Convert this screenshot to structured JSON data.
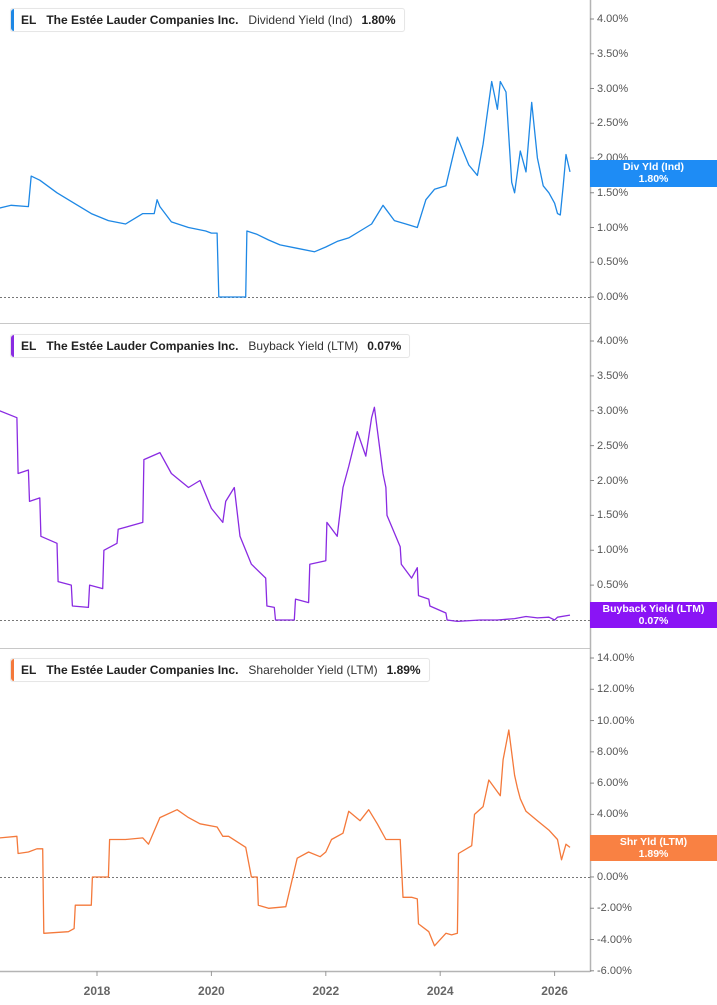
{
  "chart_data": [
    {
      "type": "line",
      "panel": 1,
      "title": "EL The Estée Lauder Companies Inc. Dividend Yield (Ind) 1.80%",
      "legend": {
        "ticker": "EL",
        "company": "The Estée Lauder Companies Inc.",
        "metric": "Dividend Yield (Ind)",
        "value": "1.80%"
      },
      "color": "#1e88e5",
      "flag": {
        "label": "Div Yld (Ind)",
        "value": "1.80%",
        "color": "#1e8cf5"
      },
      "y_ticks": [
        "4.00%",
        "3.50%",
        "3.00%",
        "2.50%",
        "2.00%",
        "1.50%",
        "1.00%",
        "0.50%",
        "0.00%"
      ],
      "ylim": [
        0,
        4.0
      ],
      "x": [
        2016.3,
        2016.5,
        2016.8,
        2016.85,
        2017.0,
        2017.3,
        2017.6,
        2017.9,
        2018.2,
        2018.5,
        2018.8,
        2019.0,
        2019.05,
        2019.1,
        2019.3,
        2019.6,
        2019.9,
        2020.0,
        2020.1,
        2020.13,
        2020.6,
        2020.62,
        2020.8,
        2021.0,
        2021.2,
        2021.5,
        2021.8,
        2022.0,
        2022.2,
        2022.4,
        2022.6,
        2022.8,
        2023.0,
        2023.2,
        2023.4,
        2023.6,
        2023.75,
        2023.9,
        2024.1,
        2024.3,
        2024.5,
        2024.65,
        2024.75,
        2024.85,
        2024.9,
        2025.0,
        2025.05,
        2025.15,
        2025.25,
        2025.3,
        2025.4,
        2025.5,
        2025.6,
        2025.7,
        2025.8,
        2025.9,
        2026.0,
        2026.05,
        2026.1,
        2026.15,
        2026.2,
        2026.27
      ],
      "values": [
        1.28,
        1.32,
        1.3,
        1.74,
        1.68,
        1.5,
        1.35,
        1.2,
        1.1,
        1.05,
        1.2,
        1.2,
        1.4,
        1.3,
        1.08,
        1.0,
        0.95,
        0.92,
        0.92,
        0.0,
        0.0,
        0.95,
        0.9,
        0.82,
        0.75,
        0.7,
        0.65,
        0.72,
        0.8,
        0.85,
        0.95,
        1.05,
        1.32,
        1.1,
        1.05,
        1.0,
        1.4,
        1.55,
        1.6,
        2.3,
        1.9,
        1.75,
        2.2,
        2.8,
        3.1,
        2.7,
        3.1,
        2.95,
        1.65,
        1.5,
        2.1,
        1.8,
        2.8,
        2.0,
        1.6,
        1.5,
        1.35,
        1.2,
        1.18,
        1.6,
        2.05,
        1.8
      ],
      "xlabel": "",
      "ylabel": ""
    },
    {
      "type": "line",
      "panel": 2,
      "title": "EL The Estée Lauder Companies Inc. Buyback Yield (LTM) 0.07%",
      "legend": {
        "ticker": "EL",
        "company": "The Estée Lauder Companies Inc.",
        "metric": "Buyback Yield (LTM)",
        "value": "0.07%"
      },
      "color": "#8a2be2",
      "flag": {
        "label": "Buyback Yield (LTM)",
        "value": "0.07%",
        "color": "#8a14f5"
      },
      "y_ticks": [
        "4.00%",
        "3.50%",
        "3.00%",
        "2.50%",
        "2.00%",
        "1.50%",
        "1.00%",
        "0.50%",
        "0.00%"
      ],
      "ylim": [
        0,
        4.0
      ],
      "x": [
        2016.3,
        2016.6,
        2016.62,
        2016.8,
        2016.82,
        2017.0,
        2017.02,
        2017.3,
        2017.32,
        2017.55,
        2017.57,
        2017.85,
        2017.87,
        2018.1,
        2018.12,
        2018.35,
        2018.37,
        2018.8,
        2018.82,
        2019.1,
        2019.3,
        2019.6,
        2019.8,
        2020.0,
        2020.2,
        2020.25,
        2020.4,
        2020.5,
        2020.7,
        2020.95,
        2020.97,
        2021.1,
        2021.12,
        2021.45,
        2021.47,
        2021.7,
        2021.72,
        2022.0,
        2022.02,
        2022.2,
        2022.3,
        2022.4,
        2022.55,
        2022.7,
        2022.8,
        2022.85,
        2023.0,
        2023.05,
        2023.07,
        2023.3,
        2023.32,
        2023.5,
        2023.6,
        2023.62,
        2023.8,
        2023.82,
        2024.1,
        2024.12,
        2024.3,
        2024.7,
        2025.0,
        2025.3,
        2025.5,
        2025.7,
        2025.9,
        2026.0,
        2026.05,
        2026.27
      ],
      "values": [
        3.0,
        2.9,
        2.1,
        2.15,
        1.7,
        1.75,
        1.2,
        1.1,
        0.55,
        0.5,
        0.2,
        0.18,
        0.5,
        0.45,
        1.0,
        1.1,
        1.3,
        1.4,
        2.3,
        2.4,
        2.1,
        1.9,
        2.0,
        1.6,
        1.4,
        1.7,
        1.9,
        1.2,
        0.8,
        0.6,
        0.2,
        0.18,
        0.0,
        0.0,
        0.3,
        0.25,
        0.8,
        0.85,
        1.4,
        1.2,
        1.9,
        2.2,
        2.7,
        2.35,
        2.9,
        3.05,
        2.1,
        1.9,
        1.5,
        1.05,
        0.8,
        0.6,
        0.75,
        0.35,
        0.3,
        0.2,
        0.1,
        0.0,
        -0.02,
        0.0,
        0.0,
        0.02,
        0.05,
        0.03,
        0.04,
        0.0,
        0.04,
        0.07
      ],
      "xlabel": "",
      "ylabel": ""
    },
    {
      "type": "line",
      "panel": 3,
      "title": "EL The Estée Lauder Companies Inc. Shareholder Yield (LTM) 1.89%",
      "legend": {
        "ticker": "EL",
        "company": "The Estée Lauder Companies Inc.",
        "metric": "Shareholder Yield (LTM)",
        "value": "1.89%"
      },
      "color": "#f4793b",
      "flag": {
        "label": "Shr Yld (LTM)",
        "value": "1.89%",
        "color": "#f98143"
      },
      "y_ticks": [
        "14.00%",
        "12.00%",
        "10.00%",
        "8.00%",
        "6.00%",
        "4.00%",
        "2.00%",
        "0.00%",
        "-2.00%",
        "-4.00%",
        "-6.00%"
      ],
      "ylim": [
        -6.0,
        14.0
      ],
      "x": [
        2016.3,
        2016.6,
        2016.62,
        2016.8,
        2016.95,
        2017.05,
        2017.07,
        2017.5,
        2017.6,
        2017.62,
        2017.9,
        2017.92,
        2018.2,
        2018.22,
        2018.5,
        2018.8,
        2018.9,
        2019.1,
        2019.4,
        2019.6,
        2019.8,
        2020.1,
        2020.2,
        2020.3,
        2020.6,
        2020.7,
        2020.8,
        2020.82,
        2021.0,
        2021.3,
        2021.5,
        2021.7,
        2021.9,
        2022.0,
        2022.1,
        2022.3,
        2022.4,
        2022.6,
        2022.75,
        2022.9,
        2023.05,
        2023.3,
        2023.35,
        2023.5,
        2023.6,
        2023.62,
        2023.8,
        2023.9,
        2024.1,
        2024.2,
        2024.3,
        2024.32,
        2024.55,
        2024.6,
        2024.75,
        2024.85,
        2025.05,
        2025.1,
        2025.2,
        2025.3,
        2025.35,
        2025.4,
        2025.5,
        2025.7,
        2025.9,
        2026.05,
        2026.12,
        2026.2,
        2026.27
      ],
      "values": [
        2.5,
        2.6,
        1.5,
        1.6,
        1.8,
        1.8,
        -3.6,
        -3.5,
        -3.3,
        -1.8,
        -1.8,
        0.0,
        0.0,
        2.4,
        2.4,
        2.5,
        2.1,
        3.8,
        4.3,
        3.8,
        3.4,
        3.2,
        2.6,
        2.6,
        1.9,
        0.0,
        0.0,
        -1.8,
        -2.0,
        -1.9,
        1.2,
        1.6,
        1.3,
        1.6,
        2.4,
        2.8,
        4.2,
        3.6,
        4.3,
        3.4,
        2.4,
        2.4,
        -1.3,
        -1.3,
        -1.4,
        -3.0,
        -3.5,
        -4.4,
        -3.6,
        -3.7,
        -3.6,
        1.5,
        2.0,
        4.0,
        4.5,
        6.2,
        5.2,
        7.5,
        9.4,
        6.5,
        5.7,
        5.0,
        4.2,
        3.6,
        3.0,
        2.4,
        1.1,
        2.1,
        1.89
      ],
      "xlabel": "",
      "ylabel": ""
    }
  ],
  "x_axis": {
    "ticks": [
      "2018",
      "2020",
      "2022",
      "2024",
      "2026"
    ]
  }
}
